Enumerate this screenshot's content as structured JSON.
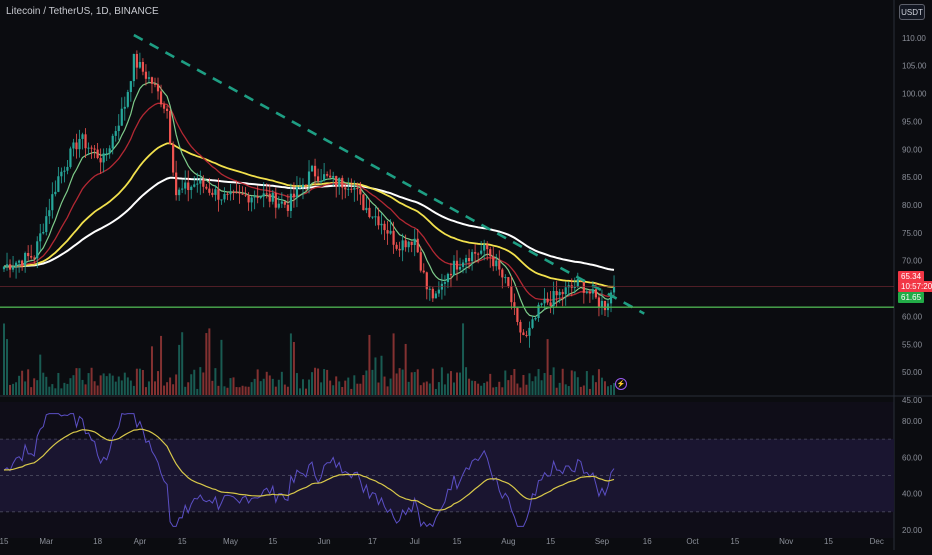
{
  "header": {
    "title": "Litecoin / TetherUS, 1D, BINANCE",
    "currency": "USDT"
  },
  "price_axis": {
    "ticks": [
      "110.00",
      "105.00",
      "100.00",
      "95.00",
      "90.00",
      "85.00",
      "80.00",
      "75.00",
      "70.00",
      "65.00",
      "60.00",
      "55.00",
      "50.00",
      "45.00"
    ]
  },
  "rsi_axis": {
    "ticks": [
      "80.00",
      "60.00",
      "40.00",
      "20.00"
    ]
  },
  "time_axis": {
    "ticks": [
      "15",
      "Mar",
      "18",
      "Apr",
      "15",
      "May",
      "15",
      "Jun",
      "17",
      "Jul",
      "15",
      "Aug",
      "15",
      "Sep",
      "16",
      "Oct",
      "15",
      "Nov",
      "15",
      "Dec"
    ]
  },
  "tags": {
    "last_price": "65.34",
    "countdown": "10:57:20",
    "support": "61.65",
    "colors": {
      "last": "#f23645",
      "support": "#22ab47"
    }
  },
  "alert": {
    "icon": "lightning-icon",
    "glyph": "⚡"
  },
  "colors": {
    "up": "#26a69a",
    "down": "#ef5350",
    "ema_fast": "#7ecb8a",
    "ema_mid": "#b22833",
    "ema_slow": "#f2e14d",
    "ema_long": "#ffffff",
    "trend": "#1e9e83",
    "support": "#4caf50",
    "rsi": "#5b4fc4",
    "rsi_ma": "#d8c84a"
  },
  "chart_data": {
    "type": "candlestick",
    "symbol": "LTCUSDT",
    "interval": "1D",
    "ylim": [
      45,
      115
    ],
    "rsi_levels": [
      70,
      50,
      30
    ],
    "support_level": 61.65,
    "last_price": 65.34,
    "trendline": {
      "from": [
        "Mar 30",
        110.5
      ],
      "to": [
        "Sep 15",
        60.5
      ]
    },
    "keypoints_close": [
      [
        "Feb 15",
        69
      ],
      [
        "Feb 25",
        71
      ],
      [
        "Mar 5",
        85
      ],
      [
        "Mar 12",
        92
      ],
      [
        "Mar 20",
        88
      ],
      [
        "Mar 27",
        98
      ],
      [
        "Mar 30",
        106
      ],
      [
        "Apr 5",
        102
      ],
      [
        "Apr 10",
        97
      ],
      [
        "Apr 13",
        82
      ],
      [
        "Apr 20",
        84
      ],
      [
        "Apr 30",
        81
      ],
      [
        "May 10",
        82
      ],
      [
        "May 20",
        80
      ],
      [
        "May 28",
        86
      ],
      [
        "Jun 5",
        84
      ],
      [
        "Jun 10",
        84
      ],
      [
        "Jun 14",
        80
      ],
      [
        "Jun 20",
        77
      ],
      [
        "Jun 25",
        73
      ],
      [
        "Jul 1",
        74
      ],
      [
        "Jul 5",
        65
      ],
      [
        "Jul 8",
        63
      ],
      [
        "Jul 12",
        68
      ],
      [
        "Jul 18",
        71
      ],
      [
        "Jul 25",
        72
      ],
      [
        "Aug 1",
        65
      ],
      [
        "Aug 4",
        58
      ],
      [
        "Aug 7",
        56
      ],
      [
        "Aug 12",
        62
      ],
      [
        "Aug 18",
        64
      ],
      [
        "Aug 25",
        66
      ],
      [
        "Aug 30",
        63
      ],
      [
        "Sep 2",
        62
      ],
      [
        "Sep 5",
        65.34
      ]
    ]
  }
}
